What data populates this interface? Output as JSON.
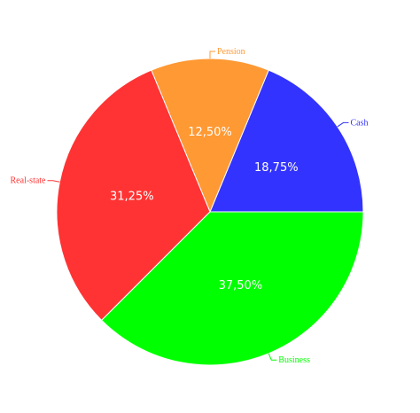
{
  "chart_data": {
    "type": "pie",
    "start_angle_deg": 0,
    "direction": "counterclockwise",
    "slices": [
      {
        "label": "Cash",
        "value": 18.75,
        "display": "18,75%",
        "color": "#3333ff"
      },
      {
        "label": "Pension",
        "value": 12.5,
        "display": "12,50%",
        "color": "#ff9933"
      },
      {
        "label": "Real-state",
        "value": 31.25,
        "display": "31,25%",
        "color": "#ff3333"
      },
      {
        "label": "Business",
        "value": 37.5,
        "display": "37,50%",
        "color": "#00ff00"
      }
    ]
  }
}
